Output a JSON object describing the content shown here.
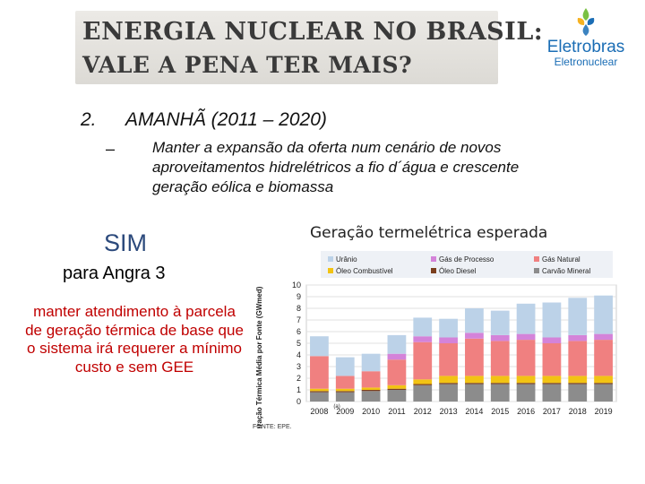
{
  "header": {
    "title_line1": "ENERGIA NUCLEAR NO BRASIL:",
    "title_line2": "VALE A PENA TER MAIS?"
  },
  "logo": {
    "brand": "Eletrobras",
    "sub": "Eletronuclear",
    "colors": [
      "#7ac143",
      "#f6b221",
      "#1a6db5"
    ]
  },
  "section": {
    "number": "2.",
    "heading": "AMANHÃ (2011 – 2020)",
    "dash": "–",
    "bullet": "Manter a expansão da oferta num cenário de novos aproveitamentos hidrelétricos a fio d´água e crescente geração eólica e biomassa"
  },
  "left_panel": {
    "sim": "SIM",
    "angra": "para Angra 3",
    "explanation": "manter atendimento à parcela de geração térmica de base que o sistema irá requerer a mínimo custo e sem GEE"
  },
  "chart_title": "Geração termelétrica esperada",
  "chart_data": {
    "type": "bar",
    "stacked": true,
    "title": "Geração termelétrica esperada",
    "ylabel": "Geração Térmica Média por Fonte (GWmed)",
    "ylim": [
      0,
      10
    ],
    "yticks": [
      0,
      1,
      2,
      3,
      4,
      5,
      6,
      7,
      8,
      9,
      10
    ],
    "categories": [
      "2008",
      "2009",
      "2010",
      "2011",
      "2012",
      "2013",
      "2014",
      "2015",
      "2016",
      "2017",
      "2018",
      "2019"
    ],
    "category_note": "(a)",
    "series": [
      {
        "name": "Carvão Mineral",
        "color": "#8c8c8c",
        "values": [
          0.8,
          0.8,
          0.9,
          1.0,
          1.4,
          1.5,
          1.5,
          1.5,
          1.5,
          1.5,
          1.5,
          1.5
        ]
      },
      {
        "name": "Óleo Diesel",
        "color": "#7b3f1e",
        "values": [
          0.1,
          0.1,
          0.1,
          0.1,
          0.1,
          0.1,
          0.1,
          0.1,
          0.1,
          0.1,
          0.1,
          0.1
        ]
      },
      {
        "name": "Óleo Combustível",
        "color": "#f2c313",
        "values": [
          0.2,
          0.2,
          0.2,
          0.3,
          0.4,
          0.6,
          0.6,
          0.6,
          0.6,
          0.6,
          0.6,
          0.6
        ]
      },
      {
        "name": "Gás Natural",
        "color": "#f08080",
        "values": [
          2.8,
          1.1,
          1.4,
          2.2,
          3.2,
          2.8,
          3.2,
          3.0,
          3.1,
          2.8,
          3.0,
          3.1
        ]
      },
      {
        "name": "Gás de Processo",
        "color": "#d483d9",
        "values": [
          0.0,
          0.0,
          0.0,
          0.5,
          0.5,
          0.5,
          0.5,
          0.5,
          0.5,
          0.5,
          0.5,
          0.5
        ]
      },
      {
        "name": "Urânio",
        "color": "#bcd2e8",
        "values": [
          1.7,
          1.6,
          1.5,
          1.6,
          1.6,
          1.6,
          2.1,
          2.1,
          2.6,
          3.0,
          3.2,
          3.3
        ]
      }
    ],
    "legend": [
      {
        "name": "Urânio",
        "color": "#bcd2e8"
      },
      {
        "name": "Gás de Processo",
        "color": "#d483d9"
      },
      {
        "name": "Gás Natural",
        "color": "#f08080"
      },
      {
        "name": "Óleo Combustível",
        "color": "#f2c313"
      },
      {
        "name": "Óleo Diesel",
        "color": "#7b3f1e"
      },
      {
        "name": "Carvão Mineral",
        "color": "#8c8c8c"
      }
    ],
    "legend_position": "top",
    "source": "FONTE: EPE."
  }
}
